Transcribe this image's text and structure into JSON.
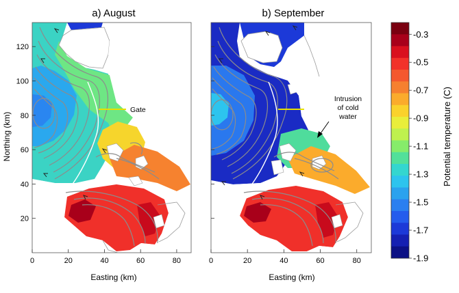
{
  "panels": [
    {
      "title": "a) August"
    },
    {
      "title": "b) September"
    }
  ],
  "axes": {
    "xlabel": "Easting (km)",
    "ylabel": "Northing (km)",
    "x_ticks": [
      "0",
      "20",
      "40",
      "60",
      "80"
    ],
    "y_ticks": [
      "20",
      "40",
      "60",
      "80",
      "100",
      "120"
    ],
    "xlim": [
      0,
      88
    ],
    "ylim": [
      0,
      134
    ]
  },
  "annotations": {
    "gate": "Gate",
    "intrusion_lines": [
      "Intrusion",
      "of cold",
      "water"
    ]
  },
  "colorbar": {
    "label": "Potential temperature (C)",
    "tick_labels": [
      "-0.3",
      "-0.5",
      "-0.7",
      "-0.9",
      "-1.1",
      "-1.3",
      "-1.5",
      "-1.7",
      "-1.9"
    ],
    "colors": [
      "#7a0010",
      "#a8001a",
      "#d9101e",
      "#f2322a",
      "#f4582e",
      "#f6802f",
      "#fbab2c",
      "#fad22c",
      "#e9ee3a",
      "#bff14e",
      "#86ec6a",
      "#52e09a",
      "#34d6cf",
      "#2dc4ee",
      "#2aa2ee",
      "#2a7ff0",
      "#245ced",
      "#1c39d8",
      "#1520b2",
      "#0c1185"
    ],
    "range": [
      -1.9,
      -0.3
    ]
  },
  "colors": {
    "gate_line": "#e8e000",
    "contour": "#8c8c8c",
    "coast": "#9a9a9a"
  }
}
